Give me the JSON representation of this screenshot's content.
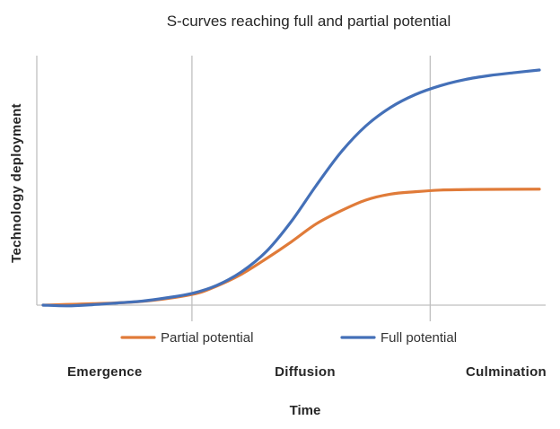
{
  "chart_data": {
    "type": "line",
    "title": "S-curves reaching full and partial potential",
    "xlabel": "Time",
    "ylabel": "Technology deployment",
    "xlim": [
      0,
      100
    ],
    "ylim": [
      0,
      100
    ],
    "x_ticks_visible": false,
    "y_ticks_visible": false,
    "grid": false,
    "vertical_dividers": [
      30,
      78
    ],
    "phase_labels": [
      "Emergence",
      "Diffusion",
      "Culmination"
    ],
    "legend_position": "bottom",
    "series": [
      {
        "name": "Partial potential",
        "color": "#E07B39",
        "x": [
          0,
          10,
          20,
          30,
          35,
          40,
          45,
          50,
          55,
          60,
          65,
          70,
          75,
          80,
          85,
          90,
          100
        ],
        "y": [
          0,
          0.6,
          1.6,
          4.5,
          8,
          13,
          19.5,
          26.5,
          34,
          39.5,
          44,
          46.5,
          47.5,
          48.2,
          48.4,
          48.5,
          48.6
        ]
      },
      {
        "name": "Full potential",
        "color": "#4470B8",
        "x": [
          0,
          5,
          10,
          15,
          20,
          25,
          30,
          35,
          40,
          45,
          50,
          55,
          60,
          65,
          70,
          75,
          80,
          85,
          90,
          95,
          100
        ],
        "y": [
          0,
          -0.3,
          0.2,
          0.9,
          1.7,
          3.1,
          4.9,
          8.3,
          14,
          22.5,
          35,
          50,
          64,
          75,
          82.8,
          88.2,
          91.9,
          94.5,
          96.2,
          97.4,
          98.5
        ]
      }
    ]
  }
}
